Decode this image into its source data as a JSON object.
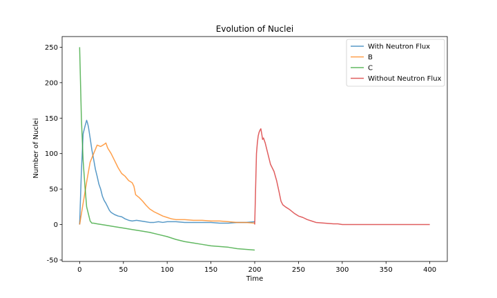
{
  "chart_data": {
    "type": "line",
    "title": "Evolution of Nuclei",
    "xlabel": "Time",
    "ylabel": "Number of Nuclei",
    "xlim": [
      -20,
      420
    ],
    "ylim": [
      -52,
      265
    ],
    "xticks": [
      0,
      50,
      100,
      150,
      200,
      250,
      300,
      350,
      400
    ],
    "yticks": [
      -50,
      0,
      50,
      100,
      150,
      200,
      250
    ],
    "grid": false,
    "legend_position": "top-right",
    "series": [
      {
        "name": "With Neutron Flux",
        "color": "#1f77b4",
        "x": [
          0,
          2,
          4,
          6,
          8,
          9,
          10,
          12,
          14,
          16,
          18,
          20,
          22,
          24,
          26,
          28,
          30,
          32,
          34,
          36,
          40,
          44,
          48,
          52,
          56,
          60,
          65,
          70,
          75,
          80,
          85,
          90,
          95,
          100,
          110,
          120,
          130,
          140,
          150,
          160,
          170,
          180,
          190,
          200
        ],
        "y": [
          0,
          75,
          128,
          138,
          147,
          143,
          138,
          122,
          105,
          92,
          78,
          68,
          57,
          50,
          40,
          34,
          30,
          25,
          20,
          17,
          14,
          12,
          11,
          8,
          6,
          5,
          6,
          5,
          4,
          3,
          3,
          4,
          3,
          4,
          4,
          3,
          3,
          3,
          3,
          2,
          2,
          3,
          3,
          4
        ]
      },
      {
        "name": "B",
        "color": "#ff7f0e",
        "x": [
          0,
          4,
          8,
          12,
          16,
          20,
          24,
          28,
          30,
          32,
          36,
          40,
          44,
          48,
          52,
          56,
          60,
          62,
          64,
          68,
          72,
          76,
          80,
          85,
          90,
          95,
          100,
          105,
          110,
          120,
          130,
          140,
          150,
          160,
          170,
          180,
          190,
          200
        ],
        "y": [
          0,
          30,
          60,
          88,
          100,
          112,
          110,
          113,
          115,
          108,
          100,
          90,
          80,
          72,
          68,
          62,
          59,
          54,
          42,
          38,
          33,
          27,
          22,
          18,
          15,
          12,
          10,
          8,
          7,
          7,
          6,
          6,
          5,
          5,
          4,
          3,
          3,
          2
        ]
      },
      {
        "name": "C",
        "color": "#2ca02c",
        "x": [
          0,
          2,
          4,
          6,
          8,
          10,
          12,
          14,
          16,
          20,
          25,
          30,
          40,
          50,
          60,
          70,
          80,
          90,
          100,
          110,
          120,
          130,
          140,
          150,
          160,
          170,
          180,
          190,
          200
        ],
        "y": [
          250,
          150,
          90,
          55,
          25,
          15,
          5,
          2,
          2,
          1,
          0,
          -1,
          -3,
          -5,
          -7,
          -9,
          -11,
          -14,
          -17,
          -21,
          -24,
          -26,
          -28,
          -30,
          -31,
          -32,
          -34,
          -35,
          -36
        ]
      },
      {
        "name": "Without Neutron Flux",
        "color": "#d62728",
        "x": [
          200,
          201,
          202,
          203,
          204,
          205,
          206,
          207,
          208,
          209,
          210,
          212,
          214,
          216,
          218,
          220,
          222,
          225,
          228,
          230,
          232,
          235,
          240,
          245,
          250,
          255,
          260,
          265,
          270,
          280,
          290,
          295,
          300,
          320,
          350,
          380,
          400
        ],
        "y": [
          0,
          50,
          100,
          115,
          125,
          130,
          133,
          135,
          128,
          120,
          122,
          115,
          105,
          95,
          85,
          80,
          75,
          62,
          45,
          33,
          28,
          25,
          21,
          16,
          12,
          10,
          7,
          5,
          3,
          2,
          1,
          1,
          0,
          0,
          0,
          0,
          0
        ]
      }
    ]
  }
}
